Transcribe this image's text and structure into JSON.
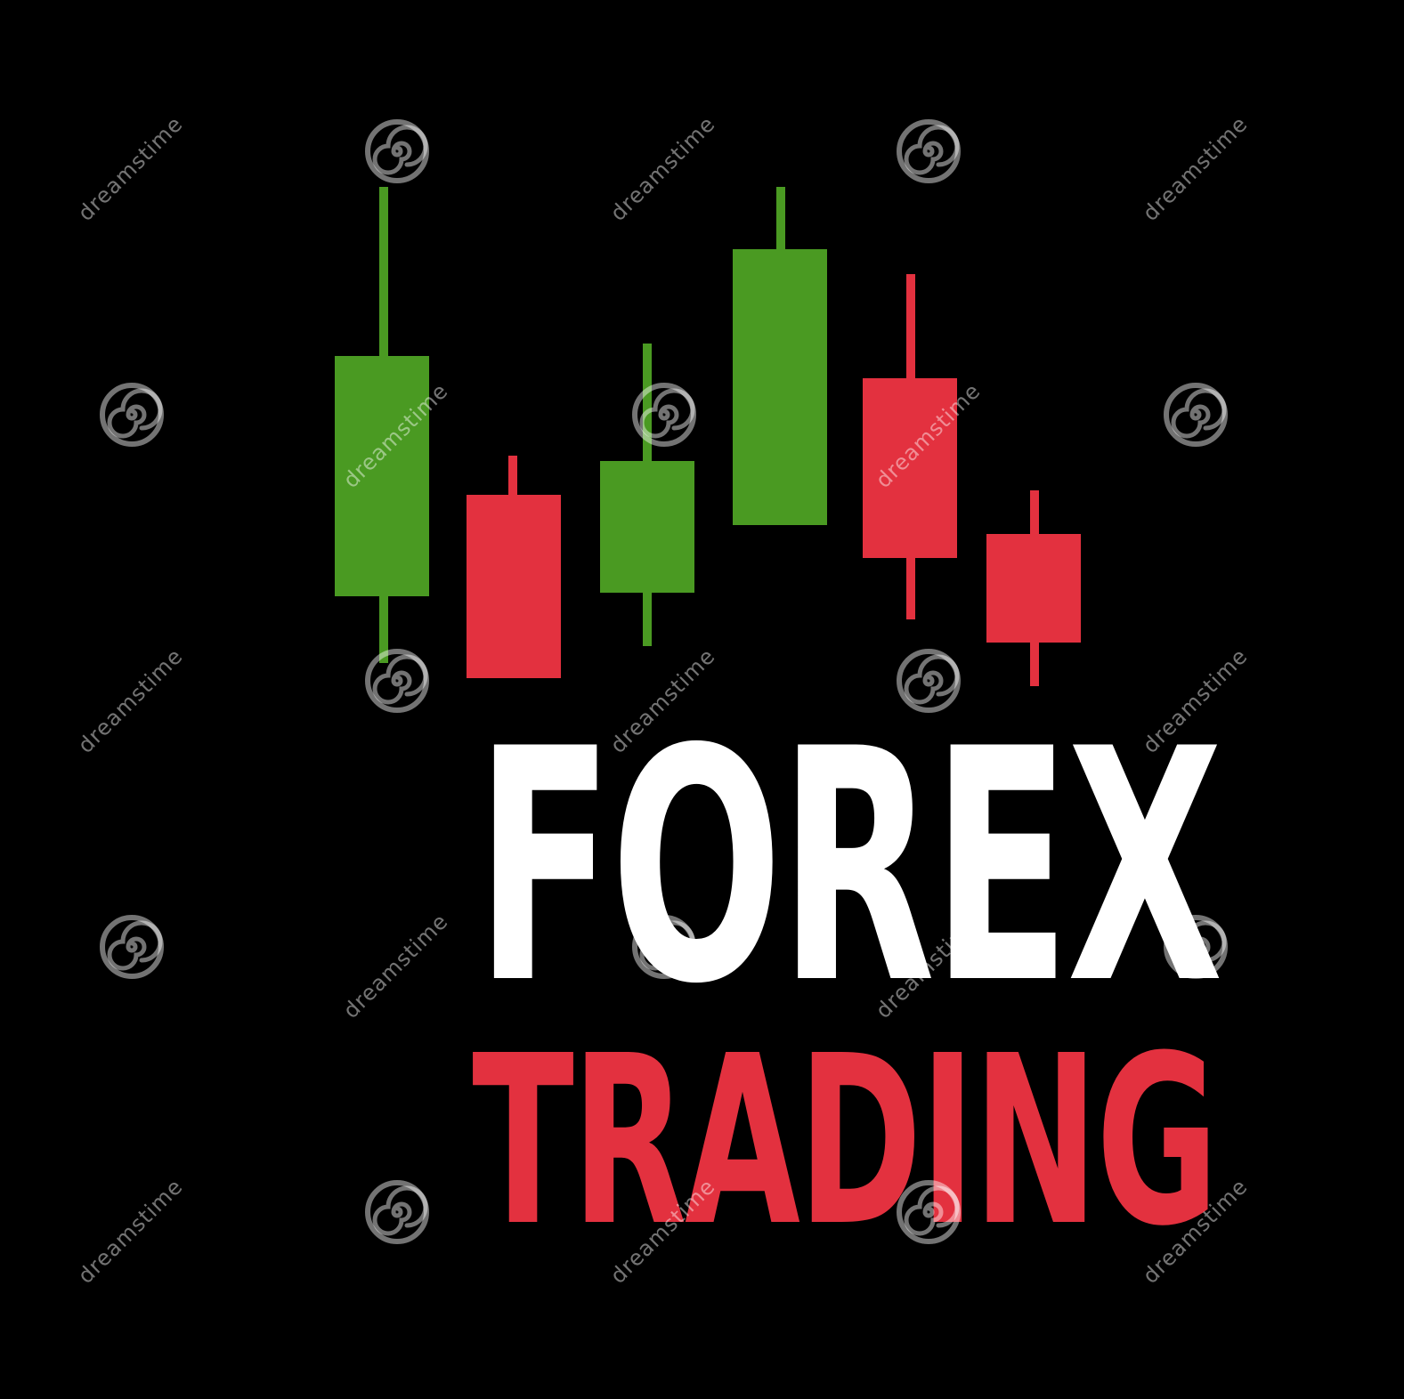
{
  "colors": {
    "background": "#000000",
    "bull": "#4a9a22",
    "bear": "#e3313f",
    "title_primary": "#ffffff",
    "title_secondary": "#e3313f",
    "watermark": "rgba(255,255,255,0.45)"
  },
  "candles": [
    {
      "trend": "bull"
    },
    {
      "trend": "bear"
    },
    {
      "trend": "bull"
    },
    {
      "trend": "bull"
    },
    {
      "trend": "bear"
    },
    {
      "trend": "bear"
    }
  ],
  "title": {
    "word_1": "FOREX",
    "word_2": "TRADING"
  },
  "watermark": {
    "text": "dreamstime",
    "icon": "swirl-logo-icon"
  }
}
